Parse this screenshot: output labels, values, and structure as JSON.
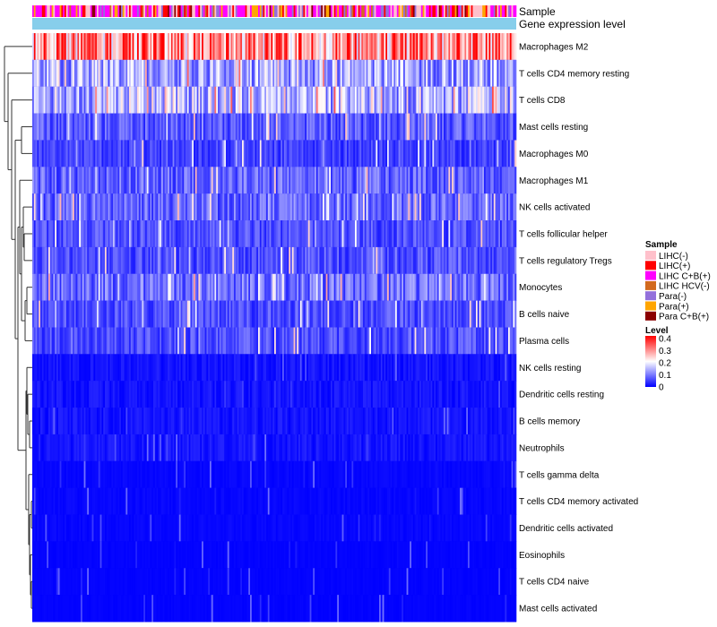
{
  "chart_data": {
    "type": "heatmap",
    "annotation_labels": [
      "Sample",
      "Gene expression level"
    ],
    "rows": [
      {
        "label": "Macrophages M2",
        "mean": 0.3
      },
      {
        "label": "T cells CD4 memory resting",
        "mean": 0.15
      },
      {
        "label": "T cells CD8",
        "mean": 0.17
      },
      {
        "label": "Mast cells resting",
        "mean": 0.08
      },
      {
        "label": "Macrophages M0",
        "mean": 0.06
      },
      {
        "label": "Macrophages M1",
        "mean": 0.09
      },
      {
        "label": "NK cells activated",
        "mean": 0.09
      },
      {
        "label": "T cells follicular helper",
        "mean": 0.07
      },
      {
        "label": "T cells regulatory  Tregs",
        "mean": 0.07
      },
      {
        "label": "Monocytes",
        "mean": 0.1
      },
      {
        "label": "B cells naive",
        "mean": 0.07
      },
      {
        "label": "Plasma cells",
        "mean": 0.07
      },
      {
        "label": "NK cells resting",
        "mean": 0.03
      },
      {
        "label": "Dendritic cells resting",
        "mean": 0.03
      },
      {
        "label": "B cells memory",
        "mean": 0.03
      },
      {
        "label": "Neutrophils",
        "mean": 0.03
      },
      {
        "label": "T cells gamma delta",
        "mean": 0.01
      },
      {
        "label": "T cells CD4 memory activated",
        "mean": 0.01
      },
      {
        "label": "Dendritic cells activated",
        "mean": 0.01
      },
      {
        "label": "Eosinophils",
        "mean": 0.005
      },
      {
        "label": "T cells CD4 naive",
        "mean": 0.005
      },
      {
        "label": "Mast cells activated",
        "mean": 0.005
      }
    ],
    "legend_sample": {
      "title": "Sample",
      "entries": [
        {
          "label": "LIHC(-)",
          "color": "#ffc0cb"
        },
        {
          "label": "LIHC(+)",
          "color": "#ff0000"
        },
        {
          "label": "LIHC C+B(+)",
          "color": "#ff00ff"
        },
        {
          "label": "LIHC HCV(-)",
          "color": "#d2691e"
        },
        {
          "label": "Para(-)",
          "color": "#9370db"
        },
        {
          "label": "Para(+)",
          "color": "#ffa500"
        },
        {
          "label": "Para C+B(+)",
          "color": "#8b0000"
        }
      ]
    },
    "legend_level": {
      "title": "Level",
      "ticks": [
        "0.4",
        "0.3",
        "0.2",
        "0.1",
        "0"
      ],
      "range": [
        0,
        0.4
      ],
      "colors": [
        "#0000ff",
        "#ffffff",
        "#ff0000"
      ]
    },
    "gene_expression_color": "#87ceeb",
    "n_samples": 300
  }
}
